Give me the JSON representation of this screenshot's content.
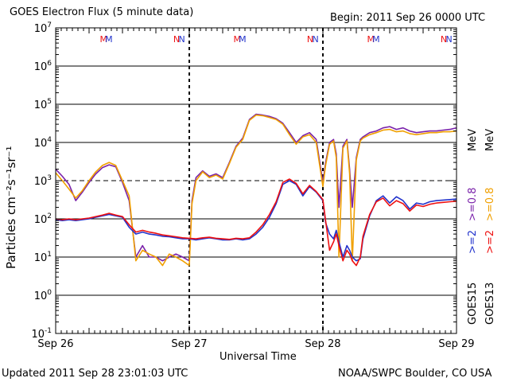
{
  "header": {
    "title": "GOES Electron Flux (5 minute data)",
    "begin": "Begin: 2011 Sep 26 0000 UTC"
  },
  "footer": {
    "updated": "Updated 2011 Sep 28 23:01:03 UTC",
    "credit": "NOAA/SWPC Boulder, CO USA"
  },
  "legend": {
    "goes15_label": "GOES15",
    "goes13_label": "GOES13",
    "ge2_label": ">=2",
    "ge08_label": ">=0.8",
    "mev_label": "MeV"
  },
  "colors": {
    "goes15_ge2": "#2233cc",
    "goes13_ge2": "#ee1111",
    "goes15_ge08": "#7a22aa",
    "goes13_ge08": "#f0a000"
  },
  "chart_data": {
    "type": "line",
    "title": "GOES Electron Flux (5 minute data)",
    "xlabel": "Universal Time",
    "ylabel": "Particles cm⁻²s⁻¹sr⁻¹",
    "x_tick_labels": [
      "Sep 26",
      "Sep 27",
      "Sep 28",
      "Sep 29"
    ],
    "xlim_days": [
      0,
      3
    ],
    "y_scale": "log",
    "ylim": [
      0.1,
      10000000
    ],
    "y_ticks": [
      {
        "base": "10",
        "exp": "7"
      },
      {
        "base": "10",
        "exp": "6"
      },
      {
        "base": "10",
        "exp": "5"
      },
      {
        "base": "10",
        "exp": "4"
      },
      {
        "base": "10",
        "exp": "3"
      },
      {
        "base": "10",
        "exp": "2"
      },
      {
        "base": "10",
        "exp": "1"
      },
      {
        "base": "10",
        "exp": "0"
      },
      {
        "base": "10",
        "exp": "-1"
      }
    ],
    "threshold": 1000,
    "grid": "horizontal",
    "markers": [
      {
        "label": "M",
        "x": 0.33,
        "color": "#ee1111"
      },
      {
        "label": "M",
        "x": 0.37,
        "color": "#2233cc"
      },
      {
        "label": "N",
        "x": 0.88,
        "color": "#ee1111"
      },
      {
        "label": "N",
        "x": 0.92,
        "color": "#2233cc"
      },
      {
        "label": "M",
        "x": 1.33,
        "color": "#ee1111"
      },
      {
        "label": "M",
        "x": 1.37,
        "color": "#2233cc"
      },
      {
        "label": "N",
        "x": 1.88,
        "color": "#ee1111"
      },
      {
        "label": "N",
        "x": 1.92,
        "color": "#2233cc"
      },
      {
        "label": "M",
        "x": 2.33,
        "color": "#ee1111"
      },
      {
        "label": "M",
        "x": 2.37,
        "color": "#2233cc"
      },
      {
        "label": "N",
        "x": 2.88,
        "color": "#ee1111"
      },
      {
        "label": "N",
        "x": 2.92,
        "color": "#2233cc"
      }
    ],
    "series": [
      {
        "name": "GOES15 >=0.8 MeV",
        "color": "#7a22aa",
        "x": [
          0,
          0.05,
          0.1,
          0.15,
          0.2,
          0.25,
          0.3,
          0.35,
          0.4,
          0.45,
          0.5,
          0.55,
          0.6,
          0.65,
          0.7,
          0.75,
          0.8,
          0.85,
          0.9,
          0.95,
          1.0,
          1.02,
          1.05,
          1.1,
          1.15,
          1.2,
          1.25,
          1.3,
          1.35,
          1.4,
          1.45,
          1.5,
          1.55,
          1.6,
          1.65,
          1.7,
          1.75,
          1.8,
          1.85,
          1.9,
          1.95,
          2.0,
          2.02,
          2.05,
          2.08,
          2.1,
          2.12,
          2.15,
          2.18,
          2.2,
          2.22,
          2.25,
          2.28,
          2.3,
          2.35,
          2.4,
          2.45,
          2.5,
          2.55,
          2.6,
          2.65,
          2.7,
          2.75,
          2.8,
          2.85,
          2.9,
          2.95,
          3.0
        ],
        "values": [
          2000,
          1300,
          800,
          300,
          500,
          900,
          1500,
          2200,
          2600,
          2300,
          900,
          300,
          10,
          20,
          10,
          10,
          8,
          10,
          12,
          10,
          8,
          300,
          1200,
          1800,
          1300,
          1500,
          1200,
          3000,
          8000,
          13000,
          40000,
          55000,
          52000,
          48000,
          42000,
          32000,
          18000,
          10000,
          15000,
          18000,
          12000,
          900,
          3000,
          10000,
          12000,
          5000,
          200,
          8000,
          12000,
          2000,
          200,
          4000,
          12000,
          14000,
          18000,
          20000,
          24000,
          26000,
          22000,
          24000,
          20000,
          18000,
          19000,
          20000,
          20000,
          21000,
          22000,
          24000
        ]
      },
      {
        "name": "GOES13 >=0.8 MeV",
        "color": "#f0a000",
        "x": [
          0,
          0.05,
          0.1,
          0.15,
          0.2,
          0.25,
          0.3,
          0.35,
          0.4,
          0.45,
          0.5,
          0.55,
          0.6,
          0.65,
          0.7,
          0.75,
          0.8,
          0.85,
          0.9,
          0.95,
          1.0,
          1.02,
          1.05,
          1.1,
          1.15,
          1.2,
          1.25,
          1.3,
          1.35,
          1.4,
          1.45,
          1.5,
          1.55,
          1.6,
          1.65,
          1.7,
          1.75,
          1.8,
          1.85,
          1.9,
          1.95,
          2.0,
          2.02,
          2.05,
          2.08,
          2.1,
          2.12,
          2.15,
          2.18,
          2.2,
          2.22,
          2.25,
          2.28,
          2.3,
          2.35,
          2.4,
          2.45,
          2.5,
          2.55,
          2.6,
          2.65,
          2.7,
          2.75,
          2.8,
          2.85,
          2.9,
          2.95,
          3.0
        ],
        "values": [
          1600,
          1000,
          600,
          350,
          550,
          1000,
          1700,
          2500,
          3000,
          2500,
          1000,
          400,
          8,
          15,
          12,
          10,
          6,
          12,
          10,
          8,
          6,
          250,
          1000,
          1700,
          1200,
          1400,
          1100,
          2800,
          7500,
          12000,
          38000,
          52000,
          50000,
          45000,
          40000,
          30000,
          16000,
          9000,
          14000,
          16000,
          10000,
          700,
          2500,
          9000,
          11000,
          4000,
          10,
          7000,
          11000,
          1500,
          8,
          3500,
          11000,
          13000,
          16000,
          18000,
          21000,
          22000,
          19000,
          20000,
          17000,
          16000,
          17000,
          18000,
          18000,
          19000,
          19000,
          20000
        ]
      },
      {
        "name": "GOES15 >=2 MeV",
        "color": "#2233cc",
        "x": [
          0,
          0.05,
          0.1,
          0.15,
          0.2,
          0.25,
          0.3,
          0.35,
          0.4,
          0.45,
          0.5,
          0.55,
          0.6,
          0.65,
          0.7,
          0.75,
          0.8,
          0.85,
          0.9,
          0.95,
          1.0,
          1.05,
          1.1,
          1.15,
          1.2,
          1.25,
          1.3,
          1.35,
          1.4,
          1.45,
          1.5,
          1.55,
          1.6,
          1.65,
          1.7,
          1.75,
          1.8,
          1.85,
          1.9,
          1.95,
          2.0,
          2.02,
          2.05,
          2.08,
          2.1,
          2.12,
          2.15,
          2.18,
          2.2,
          2.22,
          2.25,
          2.28,
          2.3,
          2.35,
          2.4,
          2.45,
          2.5,
          2.55,
          2.6,
          2.65,
          2.7,
          2.75,
          2.8,
          2.85,
          2.9,
          2.95,
          3.0
        ],
        "values": [
          95,
          90,
          95,
          90,
          95,
          100,
          110,
          120,
          130,
          120,
          110,
          60,
          40,
          45,
          40,
          38,
          35,
          34,
          32,
          30,
          30,
          28,
          30,
          32,
          30,
          28,
          28,
          30,
          28,
          30,
          40,
          60,
          110,
          250,
          800,
          1000,
          800,
          400,
          700,
          500,
          300,
          80,
          40,
          30,
          50,
          25,
          10,
          20,
          15,
          10,
          8,
          9,
          30,
          120,
          300,
          400,
          260,
          380,
          300,
          180,
          260,
          240,
          280,
          300,
          310,
          320,
          330
        ]
      },
      {
        "name": "GOES13 >=2 MeV",
        "color": "#ee1111",
        "x": [
          0,
          0.05,
          0.1,
          0.15,
          0.2,
          0.25,
          0.3,
          0.35,
          0.4,
          0.45,
          0.5,
          0.55,
          0.6,
          0.65,
          0.7,
          0.75,
          0.8,
          0.85,
          0.9,
          0.95,
          1.0,
          1.05,
          1.1,
          1.15,
          1.2,
          1.25,
          1.3,
          1.35,
          1.4,
          1.45,
          1.5,
          1.55,
          1.6,
          1.65,
          1.7,
          1.75,
          1.8,
          1.85,
          1.9,
          1.95,
          2.0,
          2.02,
          2.05,
          2.08,
          2.1,
          2.12,
          2.15,
          2.18,
          2.2,
          2.22,
          2.25,
          2.28,
          2.3,
          2.35,
          2.4,
          2.45,
          2.5,
          2.55,
          2.6,
          2.65,
          2.7,
          2.75,
          2.8,
          2.85,
          2.9,
          2.95,
          3.0
        ],
        "values": [
          100,
          95,
          100,
          95,
          100,
          105,
          115,
          125,
          140,
          125,
          115,
          70,
          45,
          50,
          45,
          42,
          38,
          36,
          34,
          32,
          31,
          30,
          32,
          33,
          31,
          30,
          29,
          31,
          30,
          32,
          45,
          70,
          130,
          280,
          900,
          1100,
          850,
          450,
          750,
          520,
          320,
          90,
          15,
          25,
          40,
          20,
          8,
          15,
          12,
          8,
          6,
          10,
          35,
          130,
          280,
          350,
          220,
          300,
          250,
          160,
          230,
          210,
          240,
          260,
          270,
          280,
          290
        ]
      }
    ]
  }
}
